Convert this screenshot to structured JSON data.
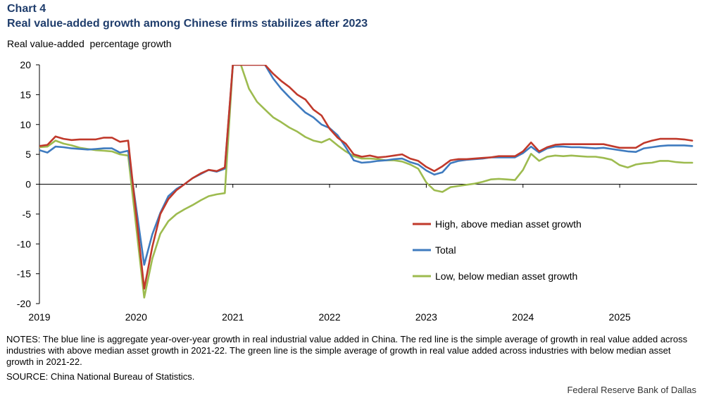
{
  "header": {
    "chart_label": "Chart 4",
    "title": "Real value-added growth among Chinese firms stabilizes after 2023"
  },
  "footer": {
    "notes": "NOTES: The blue line is aggregate year-over-year growth in real industrial value added in China. The red line is the simple average of growth in real value added across industries with above median asset growth in 2021-22. The green line is the simple average of growth in real value added across industries with below median asset growth in 2021-22.",
    "source": "SOURCE: China National Bureau of Statistics.",
    "credit": "Federal Reserve Bank of Dallas"
  },
  "chart_data": {
    "type": "line",
    "title": "Real value-added growth among Chinese firms stabilizes after 2023",
    "ylabel": "Real value-added  percentage growth",
    "xlabel": "",
    "ylim": [
      -20,
      20
    ],
    "yticks": [
      20,
      15,
      10,
      5,
      0,
      -5,
      -10,
      -15,
      -20
    ],
    "xlim": [
      2019,
      2025.8
    ],
    "xticks": [
      2019,
      2020,
      2021,
      2022,
      2023,
      2024,
      2025
    ],
    "legend_position": "center-right",
    "colors": {
      "high": "#c0392b",
      "total": "#3f7bbf",
      "low": "#9dbb4f"
    },
    "series": [
      {
        "key": "high",
        "name": "High, above median asset growth",
        "x": [
          2019.0,
          2019.083,
          2019.167,
          2019.25,
          2019.333,
          2019.417,
          2019.5,
          2019.583,
          2019.667,
          2019.75,
          2019.833,
          2019.917,
          2020.083,
          2020.167,
          2020.25,
          2020.333,
          2020.417,
          2020.5,
          2020.583,
          2020.667,
          2020.75,
          2020.833,
          2020.917,
          2021.0,
          2021.083,
          2021.333,
          2021.417,
          2021.5,
          2021.583,
          2021.667,
          2021.75,
          2021.833,
          2021.917,
          2022.0,
          2022.083,
          2022.167,
          2022.25,
          2022.333,
          2022.417,
          2022.5,
          2022.583,
          2022.667,
          2022.75,
          2022.833,
          2022.917,
          2023.0,
          2023.083,
          2023.167,
          2023.25,
          2023.333,
          2023.417,
          2023.5,
          2023.583,
          2023.667,
          2023.75,
          2023.833,
          2023.917,
          2024.0,
          2024.083,
          2024.167,
          2024.25,
          2024.333,
          2024.417,
          2024.5,
          2024.583,
          2024.667,
          2024.75,
          2024.833,
          2024.917,
          2025.0,
          2025.083,
          2025.167,
          2025.25,
          2025.333,
          2025.417,
          2025.5,
          2025.583,
          2025.667,
          2025.75
        ],
        "y": [
          6.4,
          6.6,
          8.0,
          7.6,
          7.4,
          7.5,
          7.5,
          7.5,
          7.8,
          7.8,
          7.1,
          7.3,
          -17.5,
          -10.5,
          -5.0,
          -2.5,
          -1.0,
          0.0,
          1.0,
          1.8,
          2.4,
          2.2,
          2.8,
          20.0,
          20.0,
          20.0,
          18.5,
          17.3,
          16.3,
          15.0,
          14.2,
          12.5,
          11.5,
          9.3,
          7.8,
          6.8,
          5.0,
          4.6,
          4.8,
          4.5,
          4.6,
          4.8,
          5.0,
          4.3,
          3.9,
          2.9,
          2.2,
          3.0,
          4.0,
          4.2,
          4.2,
          4.3,
          4.4,
          4.5,
          4.7,
          4.7,
          4.7,
          5.5,
          7.0,
          5.5,
          6.2,
          6.6,
          6.7,
          6.7,
          6.7,
          6.7,
          6.7,
          6.7,
          6.4,
          6.1,
          6.1,
          6.1,
          6.9,
          7.3,
          7.6,
          7.6,
          7.6,
          7.5,
          7.3
        ]
      },
      {
        "key": "total",
        "name": "Total",
        "x": [
          2019.0,
          2019.083,
          2019.167,
          2019.25,
          2019.333,
          2019.417,
          2019.5,
          2019.583,
          2019.667,
          2019.75,
          2019.833,
          2019.917,
          2020.083,
          2020.167,
          2020.25,
          2020.333,
          2020.417,
          2020.5,
          2020.583,
          2020.667,
          2020.75,
          2020.833,
          2020.917,
          2021.0,
          2021.083,
          2021.333,
          2021.417,
          2021.5,
          2021.583,
          2021.667,
          2021.75,
          2021.833,
          2021.917,
          2022.0,
          2022.083,
          2022.167,
          2022.25,
          2022.333,
          2022.417,
          2022.5,
          2022.583,
          2022.667,
          2022.75,
          2022.833,
          2022.917,
          2023.0,
          2023.083,
          2023.167,
          2023.25,
          2023.333,
          2023.417,
          2023.5,
          2023.583,
          2023.667,
          2023.75,
          2023.833,
          2023.917,
          2024.0,
          2024.083,
          2024.167,
          2024.25,
          2024.333,
          2024.417,
          2024.5,
          2024.583,
          2024.667,
          2024.75,
          2024.833,
          2024.917,
          2025.0,
          2025.083,
          2025.167,
          2025.25,
          2025.333,
          2025.417,
          2025.5,
          2025.583,
          2025.667,
          2025.75
        ],
        "y": [
          5.7,
          5.3,
          6.3,
          6.2,
          6.0,
          5.9,
          5.8,
          5.9,
          6.0,
          6.0,
          5.3,
          5.6,
          -13.5,
          -8.4,
          -4.8,
          -2.0,
          -0.8,
          0.0,
          1.0,
          1.7,
          2.4,
          2.1,
          2.6,
          20.0,
          20.0,
          20.0,
          17.7,
          16.0,
          14.6,
          13.3,
          12.0,
          11.2,
          10.0,
          9.4,
          8.2,
          6.2,
          4.0,
          3.6,
          3.7,
          3.9,
          4.0,
          4.2,
          4.3,
          3.7,
          3.3,
          2.3,
          1.6,
          2.0,
          3.5,
          3.9,
          4.1,
          4.2,
          4.3,
          4.5,
          4.5,
          4.5,
          4.5,
          5.2,
          6.3,
          5.3,
          6.0,
          6.3,
          6.3,
          6.2,
          6.2,
          6.1,
          6.0,
          6.1,
          5.9,
          5.7,
          5.5,
          5.4,
          6.0,
          6.2,
          6.4,
          6.5,
          6.5,
          6.5,
          6.4
        ]
      },
      {
        "key": "low",
        "name": "Low, below median asset growth",
        "x": [
          2019.0,
          2019.083,
          2019.167,
          2019.25,
          2019.333,
          2019.417,
          2019.5,
          2019.583,
          2019.667,
          2019.75,
          2019.833,
          2019.917,
          2020.083,
          2020.167,
          2020.25,
          2020.333,
          2020.417,
          2020.5,
          2020.583,
          2020.667,
          2020.75,
          2020.833,
          2020.917,
          2021.0,
          2021.083,
          2021.167,
          2021.25,
          2021.333,
          2021.417,
          2021.5,
          2021.583,
          2021.667,
          2021.75,
          2021.833,
          2021.917,
          2022.0,
          2022.083,
          2022.167,
          2022.25,
          2022.333,
          2022.417,
          2022.5,
          2022.583,
          2022.667,
          2022.75,
          2022.833,
          2022.917,
          2023.0,
          2023.083,
          2023.167,
          2023.25,
          2023.333,
          2023.417,
          2023.5,
          2023.583,
          2023.667,
          2023.75,
          2023.833,
          2023.917,
          2024.0,
          2024.083,
          2024.167,
          2024.25,
          2024.333,
          2024.417,
          2024.5,
          2024.583,
          2024.667,
          2024.75,
          2024.833,
          2024.917,
          2025.0,
          2025.083,
          2025.167,
          2025.25,
          2025.333,
          2025.417,
          2025.5,
          2025.583,
          2025.667,
          2025.75
        ],
        "y": [
          6.2,
          6.3,
          7.3,
          6.8,
          6.5,
          6.1,
          5.9,
          5.7,
          5.6,
          5.5,
          5.0,
          4.8,
          -19.0,
          -12.5,
          -8.3,
          -6.2,
          -5.0,
          -4.2,
          -3.5,
          -2.7,
          -2.0,
          -1.7,
          -1.5,
          20.0,
          20.0,
          16.0,
          13.8,
          12.5,
          11.2,
          10.4,
          9.5,
          8.8,
          7.9,
          7.3,
          7.0,
          7.6,
          6.5,
          5.5,
          4.7,
          4.3,
          4.3,
          4.2,
          4.0,
          4.0,
          3.8,
          3.3,
          2.6,
          0.3,
          -1.0,
          -1.3,
          -0.5,
          -0.3,
          -0.1,
          0.1,
          0.4,
          0.8,
          0.9,
          0.8,
          0.7,
          2.4,
          5.1,
          3.9,
          4.6,
          4.8,
          4.7,
          4.8,
          4.7,
          4.6,
          4.6,
          4.4,
          4.1,
          3.2,
          2.8,
          3.3,
          3.5,
          3.6,
          3.9,
          3.9,
          3.7,
          3.6,
          3.6
        ]
      }
    ]
  }
}
